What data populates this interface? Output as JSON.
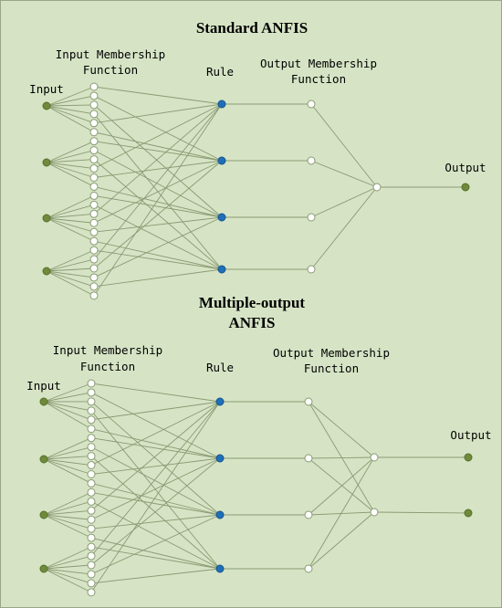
{
  "colors": {
    "background": "#d6e4c5",
    "edge": "#8a9a73",
    "input_node": "#6f8a3a",
    "rule_node": "#1f6fb8",
    "membership_node": "#ffffff"
  },
  "icons": {
    "input_node": "green-circle",
    "membership_node": "white-circle",
    "rule_node": "blue-circle",
    "output_node": "green-circle"
  },
  "panels": [
    {
      "id": "standard",
      "title_lines": [
        "Standard ANFIS"
      ],
      "labels": {
        "input": "Input",
        "input_mf": [
          "Input Membership",
          "Function"
        ],
        "rule": "Rule",
        "output_mf": [
          "Output Membership",
          "Function"
        ],
        "output": "Output"
      },
      "counts": {
        "inputs": 4,
        "mf_per_input": 6,
        "rules": 4,
        "output_mf": 4,
        "outputs": 1
      }
    },
    {
      "id": "multiple-output",
      "title_lines": [
        "Multiple-output",
        "ANFIS"
      ],
      "labels": {
        "input": "Input",
        "input_mf": [
          "Input Membership",
          "Function"
        ],
        "rule": "Rule",
        "output_mf": [
          "Output Membership",
          "Function"
        ],
        "output": "Output"
      },
      "counts": {
        "inputs": 4,
        "mf_per_input": 6,
        "rules": 4,
        "output_mf": 4,
        "outputs": 2
      }
    }
  ]
}
